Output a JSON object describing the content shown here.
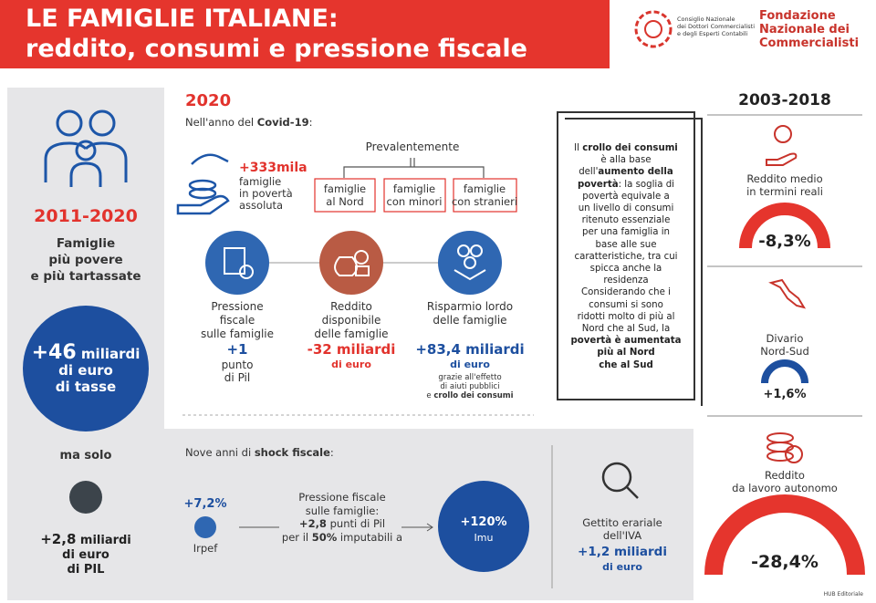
{
  "header": {
    "title": [
      "LE FAMIGLIE ITALIANE:",
      "reddito, consumi e pressione fiscale"
    ],
    "logoCndcec": [
      "Consiglio Nazionale",
      "dei Dottori Commercialisti",
      "e degli Esperti Contabili"
    ],
    "logoFondazione": [
      "Fondazione",
      "Nazionale dei",
      "Commercialisti"
    ]
  },
  "left": {
    "period": "2011-2020",
    "subtitle": [
      "Famiglie",
      "più povere",
      "e più tartassate"
    ],
    "taxes": [
      [
        "+46",
        " ",
        {
          "bold": "miliardi"
        }
      ],
      "di euro",
      "di tasse"
    ],
    "butOnly": "ma solo",
    "gdp": [
      [
        "+2,8",
        " ",
        {
          "bold": "miliardi"
        }
      ],
      "di euro",
      "di PIL"
    ]
  },
  "year2020": {
    "year": "2020",
    "intro": [
      "Nell'anno del ",
      {
        "bold": "Covid-19"
      },
      ":"
    ],
    "poverty": {
      "value": "+333mila",
      "text": [
        "famiglie",
        "in povertà",
        "assoluta"
      ]
    },
    "mainly": "Prevalentemente",
    "groups": [
      [
        "famiglie",
        "al Nord"
      ],
      [
        "famiglie",
        "con minori"
      ],
      [
        "famiglie",
        "con stranieri"
      ]
    ],
    "items": [
      {
        "label": [
          "Pressione",
          "fiscale",
          "sulle famiglie"
        ],
        "value": "+1",
        "unit": [
          "punto",
          "di Pil"
        ]
      },
      {
        "label": [
          "Reddito",
          "disponibile",
          "delle famiglie"
        ],
        "value": "-32 miliardi",
        "unit": [
          "di euro"
        ]
      },
      {
        "label": [
          "Risparmio lordo",
          "delle famiglie"
        ],
        "value": "+83,4 miliardi",
        "unit": [
          "di euro"
        ],
        "note": [
          "grazie all'effetto",
          "di aiuti pubblici",
          [
            "e ",
            {
              "bold": "crollo dei consumi"
            }
          ]
        ]
      }
    ]
  },
  "note": {
    "lines": [
      [
        "Il ",
        {
          "bold": "crollo dei consumi"
        }
      ],
      "è alla base",
      [
        "dell'",
        {
          "bold": "aumento della"
        }
      ],
      [
        {
          "bold": "povertà"
        },
        ": la soglia di"
      ],
      "povertà equivale a",
      "un livello di consumi",
      "ritenuto essenziale",
      "per una famiglia in",
      "base alle sue",
      "caratteristiche, tra cui",
      "spicca anche la",
      "residenza",
      "Considerando che i",
      "consumi si sono",
      "ridotti molto di più al",
      "Nord che al Sud, la",
      [
        {
          "bold": "povertà è aumentata"
        }
      ],
      [
        {
          "bold": "più al Nord"
        }
      ],
      [
        {
          "bold": "che al Sud"
        }
      ]
    ]
  },
  "shock": {
    "intro": [
      "Nove anni di ",
      {
        "bold": "shock fiscale"
      },
      ":"
    ],
    "irpef": {
      "value": "+7,2%",
      "label": "Irpef"
    },
    "pressure": [
      "Pressione fiscale",
      "sulle famiglie:",
      [
        {
          "bold": "+2,8"
        },
        " punti di Pil"
      ],
      [
        "per il ",
        {
          "bold": "50%"
        },
        " imputabili a"
      ]
    ],
    "imu": {
      "value": "+120%",
      "label": "Imu"
    },
    "iva": {
      "label": [
        "Gettito erariale",
        "dell'IVA"
      ],
      "value": "+1,2 miliardi",
      "unit": "di euro"
    }
  },
  "trend": {
    "period": "2003-2018",
    "items": [
      {
        "label": [
          "Reddito medio",
          "in termini reali"
        ],
        "value": "-8,3%"
      },
      {
        "label": [
          "Divario",
          "Nord-Sud"
        ],
        "value": "+1,6%"
      },
      {
        "label": [
          "Reddito",
          "da lavoro autonomo"
        ],
        "value": "-28,4%"
      }
    ]
  },
  "footer": "HUB Editoriale"
}
